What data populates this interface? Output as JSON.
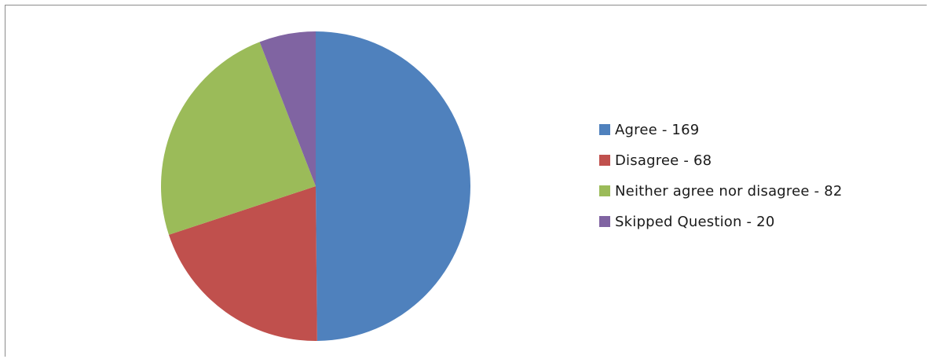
{
  "chart_data": {
    "type": "pie",
    "slices": [
      {
        "label": "Agree - 169",
        "category": "Agree",
        "value": 169,
        "color": "#4f81bd"
      },
      {
        "label": "Disagree - 68",
        "category": "Disagree",
        "value": 68,
        "color": "#c0504d"
      },
      {
        "label": "Neither agree nor disagree - 82",
        "category": "Neither agree nor disagree",
        "value": 82,
        "color": "#9bbb59"
      },
      {
        "label": "Skipped Question - 20",
        "category": "Skipped Question",
        "value": 20,
        "color": "#8064a2"
      }
    ],
    "start_angle_deg": 0,
    "direction": "clockwise",
    "legend_position": "right"
  }
}
